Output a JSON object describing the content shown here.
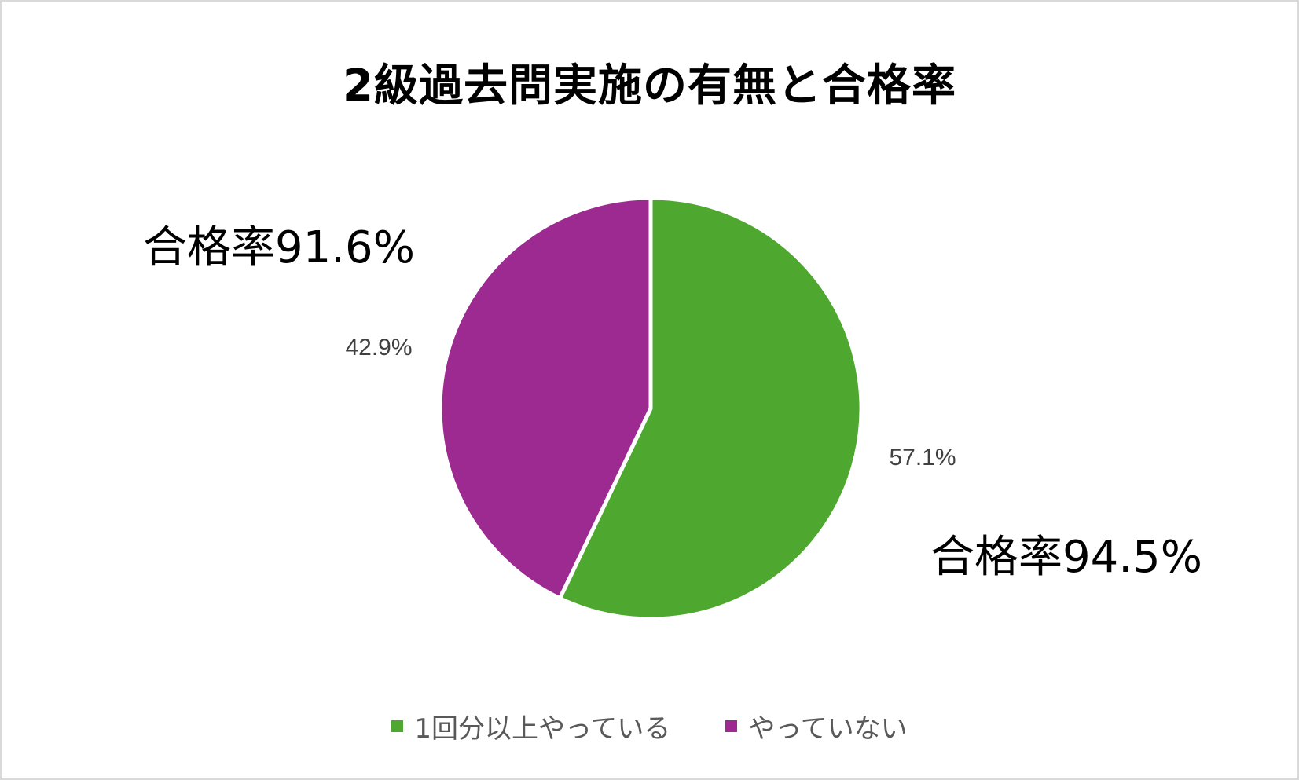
{
  "chart_data": {
    "type": "pie",
    "title": "2級過去問実施の有無と合格率",
    "slices": [
      {
        "name": "1回分以上やっている",
        "value": 57.1,
        "label": "57.1%",
        "color": "#4ea72e"
      },
      {
        "name": "やっていない",
        "value": 42.9,
        "label": "42.9%",
        "color": "#9c2a90"
      }
    ],
    "annotations": [
      {
        "text": "合格率91.6%",
        "series": "やっていない"
      },
      {
        "text": "合格率94.5%",
        "series": "1回分以上やっている"
      }
    ],
    "legend_position": "bottom",
    "start_angle": "12 o'clock",
    "direction": "clockwise"
  }
}
